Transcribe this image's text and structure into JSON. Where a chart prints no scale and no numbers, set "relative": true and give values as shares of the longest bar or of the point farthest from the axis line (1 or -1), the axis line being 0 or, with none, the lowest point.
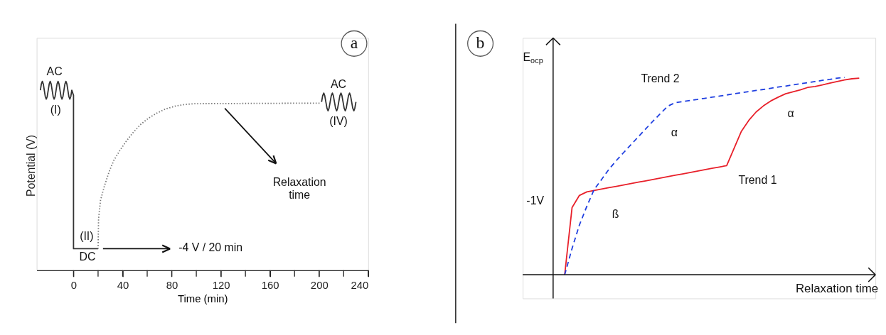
{
  "chart_data": [
    {
      "type": "line",
      "relative": true,
      "xlabel": "Time (min)",
      "ylabel": "Potential (V)",
      "tick_labels": "x",
      "grid": false,
      "xlim": [
        -30,
        240
      ],
      "xticks": [
        0,
        {
          "value": 20,
          "label": null
        },
        40,
        {
          "value": 60,
          "label": null
        },
        80,
        {
          "value": 100,
          "label": null
        },
        120,
        {
          "value": 140,
          "label": null
        },
        160,
        {
          "value": 180,
          "label": null
        },
        200,
        {
          "value": 220,
          "label": null
        },
        240
      ],
      "series": [
        {
          "color": "#333333",
          "line_style": "solid",
          "x": [
            -27.0,
            -26.2,
            -25.4,
            -24.6,
            -23.8,
            -23.0,
            -22.2,
            -21.4,
            -20.6,
            -19.8,
            -19.0,
            -18.2,
            -17.4,
            -16.6,
            -15.8,
            -15.0,
            -14.2,
            -13.4,
            -12.6,
            -11.8,
            -11.0,
            -10.2,
            -9.4,
            -8.6,
            -7.8,
            -7.0,
            -6.2,
            -5.4,
            -4.6,
            -3.8,
            -3.0,
            -2.2,
            -1.4,
            0,
            0,
            20
          ],
          "values": [
            0.953,
            0.986,
            1.0,
            0.986,
            0.953,
            0.92,
            0.906,
            0.92,
            0.953,
            0.986,
            1.0,
            0.986,
            0.953,
            0.92,
            0.906,
            0.92,
            0.953,
            0.986,
            1.0,
            0.986,
            0.953,
            0.92,
            0.906,
            0.92,
            0.953,
            0.986,
            1.0,
            0.986,
            0.953,
            0.92,
            0.906,
            0.92,
            0.953,
            0.926,
            0.114,
            0.114
          ]
        },
        {
          "color": "#777777",
          "line_style": "dotted",
          "x": [
            20,
            20.4,
            22,
            25.2,
            29,
            33,
            38,
            42.7,
            48,
            54.3,
            61,
            67.9,
            75,
            83.4,
            91,
            99,
            201.8
          ],
          "values": [
            0.114,
            0.273,
            0.371,
            0.447,
            0.522,
            0.584,
            0.637,
            0.681,
            0.725,
            0.77,
            0.805,
            0.832,
            0.854,
            0.87,
            0.878,
            0.882,
            0.885
          ]
        },
        {
          "color": "#333333",
          "line_style": "solid",
          "x": [
            202,
            202.9,
            203.8,
            204.6,
            205.5,
            206.4,
            207.3,
            208.1,
            209.0,
            209.9,
            210.8,
            211.6,
            212.5,
            213.4,
            214.3,
            215.1,
            216.0,
            216.9,
            217.8,
            218.6,
            219.5,
            220.4,
            221.3,
            222.1,
            223.0,
            223.9,
            224.8,
            225.6,
            226.5,
            227.4,
            228.3,
            229.1,
            230.0
          ],
          "values": [
            0.891,
            0.924,
            0.938,
            0.924,
            0.891,
            0.858,
            0.844,
            0.858,
            0.891,
            0.924,
            0.938,
            0.924,
            0.891,
            0.858,
            0.844,
            0.858,
            0.891,
            0.924,
            0.938,
            0.924,
            0.891,
            0.858,
            0.844,
            0.858,
            0.891,
            0.924,
            0.938,
            0.924,
            0.891,
            0.858,
            0.844,
            0.858,
            0.891
          ]
        }
      ],
      "annotations": [
        "AC",
        "(I)",
        "(II)",
        "DC",
        "-4 V / 20 min",
        "AC",
        "(IV)",
        "Relaxation\ntime",
        "a"
      ]
    },
    {
      "type": "line",
      "relative": true,
      "xlabel": "Relaxation time",
      "ylabel": "E$_{ocp}$",
      "tick_labels": false,
      "grid": false,
      "categories": [
        null,
        null,
        null,
        null,
        null,
        null,
        null,
        null,
        null,
        null,
        null,
        null,
        null,
        null,
        null,
        null,
        null,
        null,
        null,
        null,
        null,
        null,
        null,
        null,
        null,
        null,
        null,
        null,
        null,
        null,
        null,
        null,
        null,
        null,
        null,
        null,
        null,
        null,
        null,
        null,
        null
      ],
      "series": [
        {
          "color": "#e8202a",
          "line_style": "solid",
          "values": [
            0,
            0.34,
            0.402,
            0.42,
            0.427,
            0.434,
            0.441,
            0.448,
            0.455,
            0.462,
            0.469,
            0.476,
            0.483,
            0.49,
            0.497,
            0.504,
            0.511,
            0.518,
            0.525,
            0.532,
            0.539,
            0.546,
            0.553,
            0.64,
            0.727,
            0.782,
            0.825,
            0.856,
            0.881,
            0.9,
            0.917,
            0.927,
            0.937,
            0.949,
            0.954,
            0.962,
            0.971,
            0.979,
            0.987,
            0.993,
            0.996
          ]
        },
        {
          "color": "#1f3fe0",
          "line_style": "dashed",
          "values": [
            0,
            0.133,
            0.252,
            0.346,
            0.432,
            0.482,
            0.534,
            0.578,
            0.619,
            0.659,
            0.699,
            0.739,
            0.779,
            0.817,
            0.854,
            0.872,
            0.877,
            0.883,
            0.888,
            0.894,
            0.9,
            0.905,
            0.911,
            0.917,
            0.922,
            0.928,
            0.934,
            0.939,
            0.945,
            0.951,
            0.956,
            0.962,
            0.968,
            0.973,
            0.979,
            0.985,
            0.99,
            0.996,
            1.0,
            null,
            null
          ]
        }
      ],
      "annotations": [
        "Trend 2",
        "α",
        "α",
        "Trend 1",
        "ß",
        "-1V",
        "b"
      ]
    }
  ]
}
